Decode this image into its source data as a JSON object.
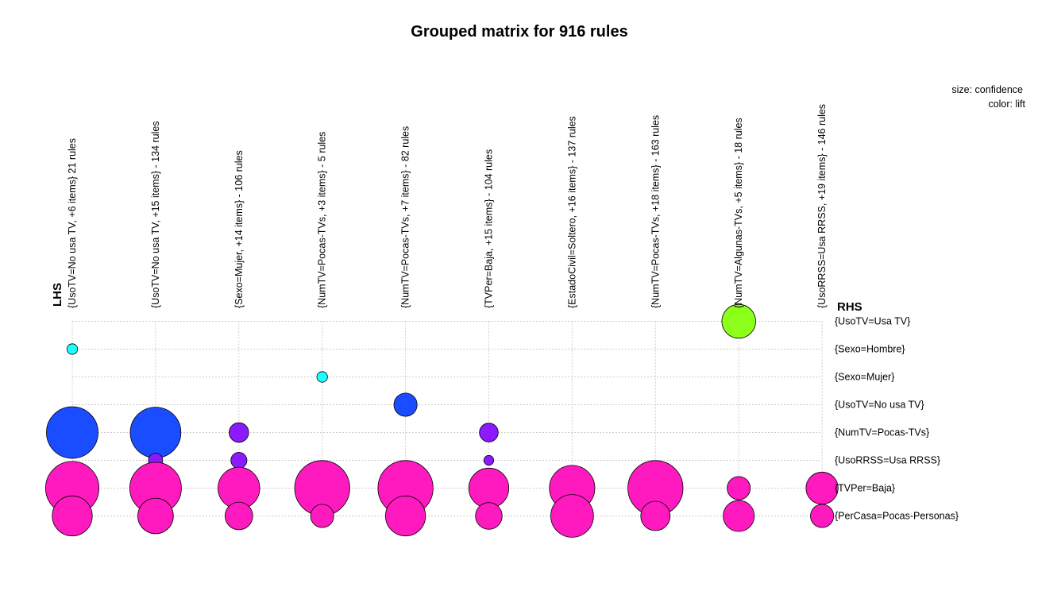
{
  "chart_data": {
    "type": "scatter",
    "subtype": "grouped-matrix-bubble",
    "title": "Grouped matrix for 916 rules",
    "lhs_label": "LHS",
    "rhs_label": "RHS",
    "legend": {
      "size": "size: confidence",
      "color": "color: lift",
      "placement": "top-right"
    },
    "grid": true,
    "lhs": [
      "{UsoTV=No usa TV, +6 items}  21 rules",
      "{UsoTV=No usa TV, +15 items} - 134 rules",
      "{Sexo=Mujer, +14 items} - 106 rules",
      "{NumTV=Pocas-TVs, +3 items} - 5 rules",
      "{NumTV=Pocas-TVs, +7 items} - 82 rules",
      "{TVPer=Baja, +15 items} - 104 rules",
      "{EstadoCivil=Soltero, +16 items} - 137 rules",
      "{NumTV=Pocas-TVs, +18 items} - 163 rules",
      "{NumTV=Algunas-TVs, +5 items} - 18 rules",
      "{UsoRRSS=Usa RRSS, +19 items} - 146 rules"
    ],
    "rhs": [
      "{UsoTV=Usa TV}",
      "{Sexo=Hombre}",
      "{Sexo=Mujer}",
      "{UsoTV=No usa TV}",
      "{NumTV=Pocas-TVs}",
      "{UsoRRSS=Usa RRSS}",
      "{TVPer=Baja}",
      "{PerCasa=Pocas-Personas}"
    ],
    "points": [
      {
        "lhs": 8,
        "rhs": 0,
        "confidence": 0.38,
        "color": "#8cff1a"
      },
      {
        "lhs": 0,
        "rhs": 1,
        "confidence": 0.12,
        "color": "#1affff"
      },
      {
        "lhs": 3,
        "rhs": 2,
        "confidence": 0.12,
        "color": "#1affff"
      },
      {
        "lhs": 4,
        "rhs": 3,
        "confidence": 0.26,
        "color": "#1a4dff"
      },
      {
        "lhs": 0,
        "rhs": 4,
        "confidence": 0.58,
        "color": "#1a4dff"
      },
      {
        "lhs": 1,
        "rhs": 4,
        "confidence": 0.57,
        "color": "#1a4dff"
      },
      {
        "lhs": 2,
        "rhs": 4,
        "confidence": 0.22,
        "color": "#8c1aff"
      },
      {
        "lhs": 5,
        "rhs": 4,
        "confidence": 0.21,
        "color": "#8c1aff"
      },
      {
        "lhs": 1,
        "rhs": 5,
        "confidence": 0.16,
        "color": "#8c1aff"
      },
      {
        "lhs": 2,
        "rhs": 5,
        "confidence": 0.18,
        "color": "#8c1aff"
      },
      {
        "lhs": 5,
        "rhs": 5,
        "confidence": 0.11,
        "color": "#8c1aff"
      },
      {
        "lhs": 0,
        "rhs": 6,
        "confidence": 0.6,
        "color": "#ff1abf"
      },
      {
        "lhs": 1,
        "rhs": 6,
        "confidence": 0.58,
        "color": "#ff1abf"
      },
      {
        "lhs": 2,
        "rhs": 6,
        "confidence": 0.47,
        "color": "#ff1abf"
      },
      {
        "lhs": 3,
        "rhs": 6,
        "confidence": 0.62,
        "color": "#ff1abf"
      },
      {
        "lhs": 4,
        "rhs": 6,
        "confidence": 0.62,
        "color": "#ff1abf"
      },
      {
        "lhs": 5,
        "rhs": 6,
        "confidence": 0.45,
        "color": "#ff1abf"
      },
      {
        "lhs": 6,
        "rhs": 6,
        "confidence": 0.51,
        "color": "#ff1abf"
      },
      {
        "lhs": 7,
        "rhs": 6,
        "confidence": 0.62,
        "color": "#ff1abf"
      },
      {
        "lhs": 8,
        "rhs": 6,
        "confidence": 0.26,
        "color": "#ff1abf"
      },
      {
        "lhs": 9,
        "rhs": 6,
        "confidence": 0.36,
        "color": "#ff1abf"
      },
      {
        "lhs": 0,
        "rhs": 7,
        "confidence": 0.45,
        "color": "#ff1abf"
      },
      {
        "lhs": 1,
        "rhs": 7,
        "confidence": 0.4,
        "color": "#ff1abf"
      },
      {
        "lhs": 2,
        "rhs": 7,
        "confidence": 0.31,
        "color": "#ff1abf"
      },
      {
        "lhs": 3,
        "rhs": 7,
        "confidence": 0.26,
        "color": "#ff1abf"
      },
      {
        "lhs": 4,
        "rhs": 7,
        "confidence": 0.45,
        "color": "#ff1abf"
      },
      {
        "lhs": 5,
        "rhs": 7,
        "confidence": 0.3,
        "color": "#ff1abf"
      },
      {
        "lhs": 6,
        "rhs": 7,
        "confidence": 0.48,
        "color": "#ff1abf"
      },
      {
        "lhs": 7,
        "rhs": 7,
        "confidence": 0.33,
        "color": "#ff1abf"
      },
      {
        "lhs": 8,
        "rhs": 7,
        "confidence": 0.35,
        "color": "#ff1abf"
      },
      {
        "lhs": 9,
        "rhs": 7,
        "confidence": 0.26,
        "color": "#ff1abf"
      }
    ]
  }
}
